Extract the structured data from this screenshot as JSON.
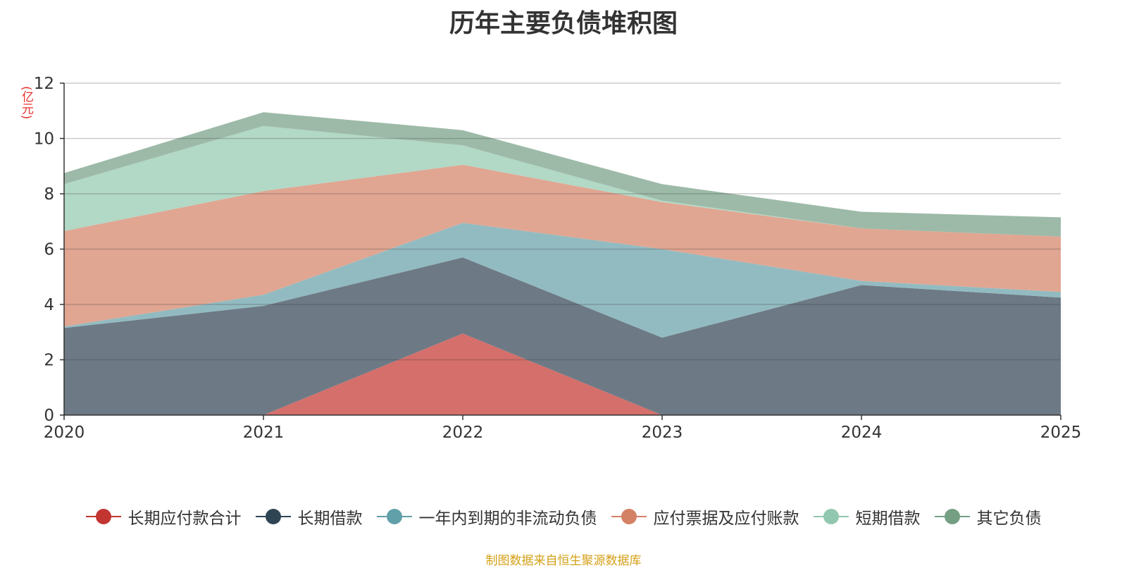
{
  "chart_data": {
    "type": "area",
    "stacked": true,
    "title": "历年主要负债堆积图",
    "unit_label": "(亿元)",
    "categories": [
      "2020",
      "2021",
      "2022",
      "2023",
      "2024",
      "2025"
    ],
    "ylim": [
      0,
      12
    ],
    "yticks": [
      0,
      2,
      4,
      6,
      8,
      10,
      12
    ],
    "grid": true,
    "series": [
      {
        "name": "长期应付款合计",
        "color": "#c23531",
        "fill": "#d46f6b",
        "values": [
          0,
          0,
          2.95,
          0,
          0,
          0
        ]
      },
      {
        "name": "长期借款",
        "color": "#2f4554",
        "fill": "#6d7a85",
        "values": [
          3.15,
          3.95,
          2.75,
          2.8,
          4.7,
          4.25
        ]
      },
      {
        "name": "一年内到期的非流动负债",
        "color": "#61a0a8",
        "fill": "#92bbc1",
        "values": [
          0.05,
          0.4,
          1.25,
          3.2,
          0.15,
          0.2
        ]
      },
      {
        "name": "应付票据及应付账款",
        "color": "#d48265",
        "fill": "#e0a692",
        "values": [
          3.45,
          3.75,
          2.1,
          1.7,
          1.9,
          2.0
        ]
      },
      {
        "name": "短期借款",
        "color": "#91c7ae",
        "fill": "#b2d8c6",
        "values": [
          1.7,
          2.35,
          0.7,
          0.05,
          0.0,
          0.0
        ]
      },
      {
        "name": "其它负债",
        "color": "#749f83",
        "fill": "#9dbaa8",
        "values": [
          0.4,
          0.5,
          0.55,
          0.6,
          0.6,
          0.7
        ]
      }
    ],
    "legend_position": "bottom"
  },
  "source": "制图数据来自恒生聚源数据库"
}
